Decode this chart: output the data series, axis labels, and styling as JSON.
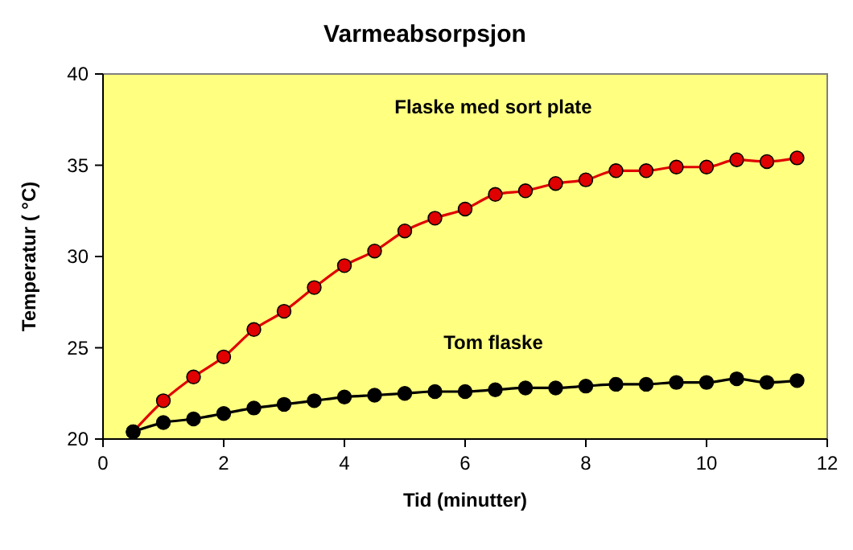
{
  "chart_data": {
    "type": "line",
    "title": "Varmeabsorpsjon",
    "xlabel": "Tid (minutter)",
    "ylabel": "Temperatur ( °C)",
    "x": [
      0.5,
      1,
      1.5,
      2,
      2.5,
      3,
      3.5,
      4,
      4.5,
      5,
      5.5,
      6,
      6.5,
      7,
      7.5,
      8,
      8.5,
      9,
      9.5,
      10,
      10.5,
      11,
      11.5
    ],
    "series": [
      {
        "name": "Flaske med sort plate",
        "color": "#e00000",
        "values": [
          20.4,
          22.1,
          23.4,
          24.5,
          26.0,
          27.0,
          28.3,
          29.5,
          30.3,
          31.4,
          32.1,
          32.6,
          33.4,
          33.6,
          34.0,
          34.2,
          34.7,
          34.7,
          34.9,
          34.9,
          35.3,
          35.2,
          35.4
        ]
      },
      {
        "name": "Tom flaske",
        "color": "#000000",
        "values": [
          20.4,
          20.9,
          21.1,
          21.4,
          21.7,
          21.9,
          22.1,
          22.3,
          22.4,
          22.5,
          22.6,
          22.6,
          22.7,
          22.8,
          22.8,
          22.9,
          23.0,
          23.0,
          23.1,
          23.1,
          23.3,
          23.1,
          23.2
        ]
      }
    ],
    "xlim": [
      0,
      12
    ],
    "xticks": [
      0,
      2,
      4,
      6,
      8,
      10,
      12
    ],
    "ylim": [
      20,
      40
    ],
    "yticks": [
      20,
      25,
      30,
      35,
      40
    ],
    "grid": false,
    "marker": "circle",
    "line_style": "solid"
  }
}
